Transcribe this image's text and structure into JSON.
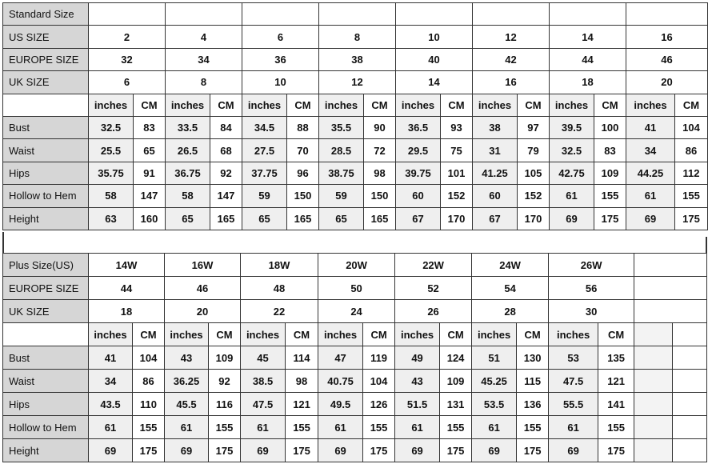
{
  "standard": {
    "header_label": "Standard Size",
    "size_rows": [
      {
        "label": "US SIZE",
        "values": [
          "2",
          "4",
          "6",
          "8",
          "10",
          "12",
          "14",
          "16"
        ]
      },
      {
        "label": "EUROPE SIZE",
        "values": [
          "32",
          "34",
          "36",
          "38",
          "40",
          "42",
          "44",
          "46"
        ]
      },
      {
        "label": "UK SIZE",
        "values": [
          "6",
          "8",
          "10",
          "12",
          "14",
          "16",
          "18",
          "20"
        ]
      }
    ],
    "unit_inches": "inches",
    "unit_cm": "CM",
    "measure_rows": [
      {
        "label": "Bust",
        "values": [
          "32.5",
          "83",
          "33.5",
          "84",
          "34.5",
          "88",
          "35.5",
          "90",
          "36.5",
          "93",
          "38",
          "97",
          "39.5",
          "100",
          "41",
          "104"
        ]
      },
      {
        "label": "Waist",
        "values": [
          "25.5",
          "65",
          "26.5",
          "68",
          "27.5",
          "70",
          "28.5",
          "72",
          "29.5",
          "75",
          "31",
          "79",
          "32.5",
          "83",
          "34",
          "86"
        ]
      },
      {
        "label": "Hips",
        "values": [
          "35.75",
          "91",
          "36.75",
          "92",
          "37.75",
          "96",
          "38.75",
          "98",
          "39.75",
          "101",
          "41.25",
          "105",
          "42.75",
          "109",
          "44.25",
          "112"
        ]
      },
      {
        "label": "Hollow to Hem",
        "values": [
          "58",
          "147",
          "58",
          "147",
          "59",
          "150",
          "59",
          "150",
          "60",
          "152",
          "60",
          "152",
          "61",
          "155",
          "61",
          "155"
        ]
      },
      {
        "label": "Height",
        "values": [
          "63",
          "160",
          "65",
          "165",
          "65",
          "165",
          "65",
          "165",
          "67",
          "170",
          "67",
          "170",
          "69",
          "175",
          "69",
          "175"
        ]
      }
    ]
  },
  "plus": {
    "size_rows": [
      {
        "label": "Plus Size(US)",
        "values": [
          "14W",
          "16W",
          "18W",
          "20W",
          "22W",
          "24W",
          "26W"
        ]
      },
      {
        "label": "EUROPE SIZE",
        "values": [
          "44",
          "46",
          "48",
          "50",
          "52",
          "54",
          "56"
        ]
      },
      {
        "label": "UK SIZE",
        "values": [
          "18",
          "20",
          "22",
          "24",
          "26",
          "28",
          "30"
        ]
      }
    ],
    "unit_inches": "inches",
    "unit_cm": "CM",
    "measure_rows": [
      {
        "label": "Bust",
        "values": [
          "41",
          "104",
          "43",
          "109",
          "45",
          "114",
          "47",
          "119",
          "49",
          "124",
          "51",
          "130",
          "53",
          "135"
        ]
      },
      {
        "label": "Waist",
        "values": [
          "34",
          "86",
          "36.25",
          "92",
          "38.5",
          "98",
          "40.75",
          "104",
          "43",
          "109",
          "45.25",
          "115",
          "47.5",
          "121"
        ]
      },
      {
        "label": "Hips",
        "values": [
          "43.5",
          "110",
          "45.5",
          "116",
          "47.5",
          "121",
          "49.5",
          "126",
          "51.5",
          "131",
          "53.5",
          "136",
          "55.5",
          "141"
        ]
      },
      {
        "label": "Hollow to Hem",
        "values": [
          "61",
          "155",
          "61",
          "155",
          "61",
          "155",
          "61",
          "155",
          "61",
          "155",
          "61",
          "155",
          "61",
          "155"
        ]
      },
      {
        "label": "Height",
        "values": [
          "69",
          "175",
          "69",
          "175",
          "69",
          "175",
          "69",
          "175",
          "69",
          "175",
          "69",
          "175",
          "69",
          "175"
        ]
      }
    ]
  }
}
